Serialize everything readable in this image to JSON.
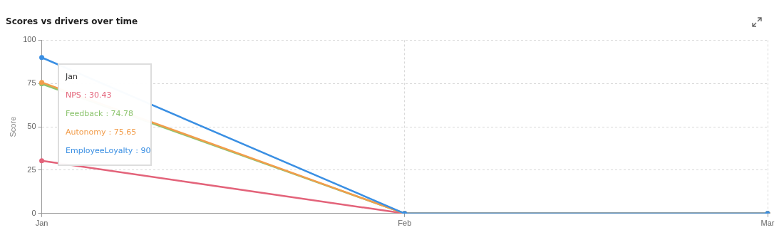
{
  "chart_data": {
    "type": "line",
    "title": "Scores vs drivers over time",
    "ylabel": "Score",
    "categories": [
      "Jan",
      "Feb",
      "Mar"
    ],
    "series": [
      {
        "name": "NPS",
        "color": "#e3637a",
        "values": [
          30.43,
          0,
          0
        ]
      },
      {
        "name": "Feedback",
        "color": "#8cc46e",
        "values": [
          74.78,
          0,
          0
        ]
      },
      {
        "name": "Autonomy",
        "color": "#f29d4b",
        "values": [
          75.65,
          0,
          0
        ]
      },
      {
        "name": "EmployeeLoyalty",
        "color": "#3a8fe3",
        "values": [
          90,
          0,
          0
        ]
      }
    ],
    "ylim": [
      0,
      100
    ],
    "yticks": [
      0,
      25,
      50,
      75,
      100
    ],
    "grid": true,
    "legend": false,
    "marker": "circle",
    "line_style": "solid",
    "annotations": [
      "Jan",
      ": 30.43",
      ": 74.78",
      ": 75.65",
      ": 90"
    ]
  }
}
